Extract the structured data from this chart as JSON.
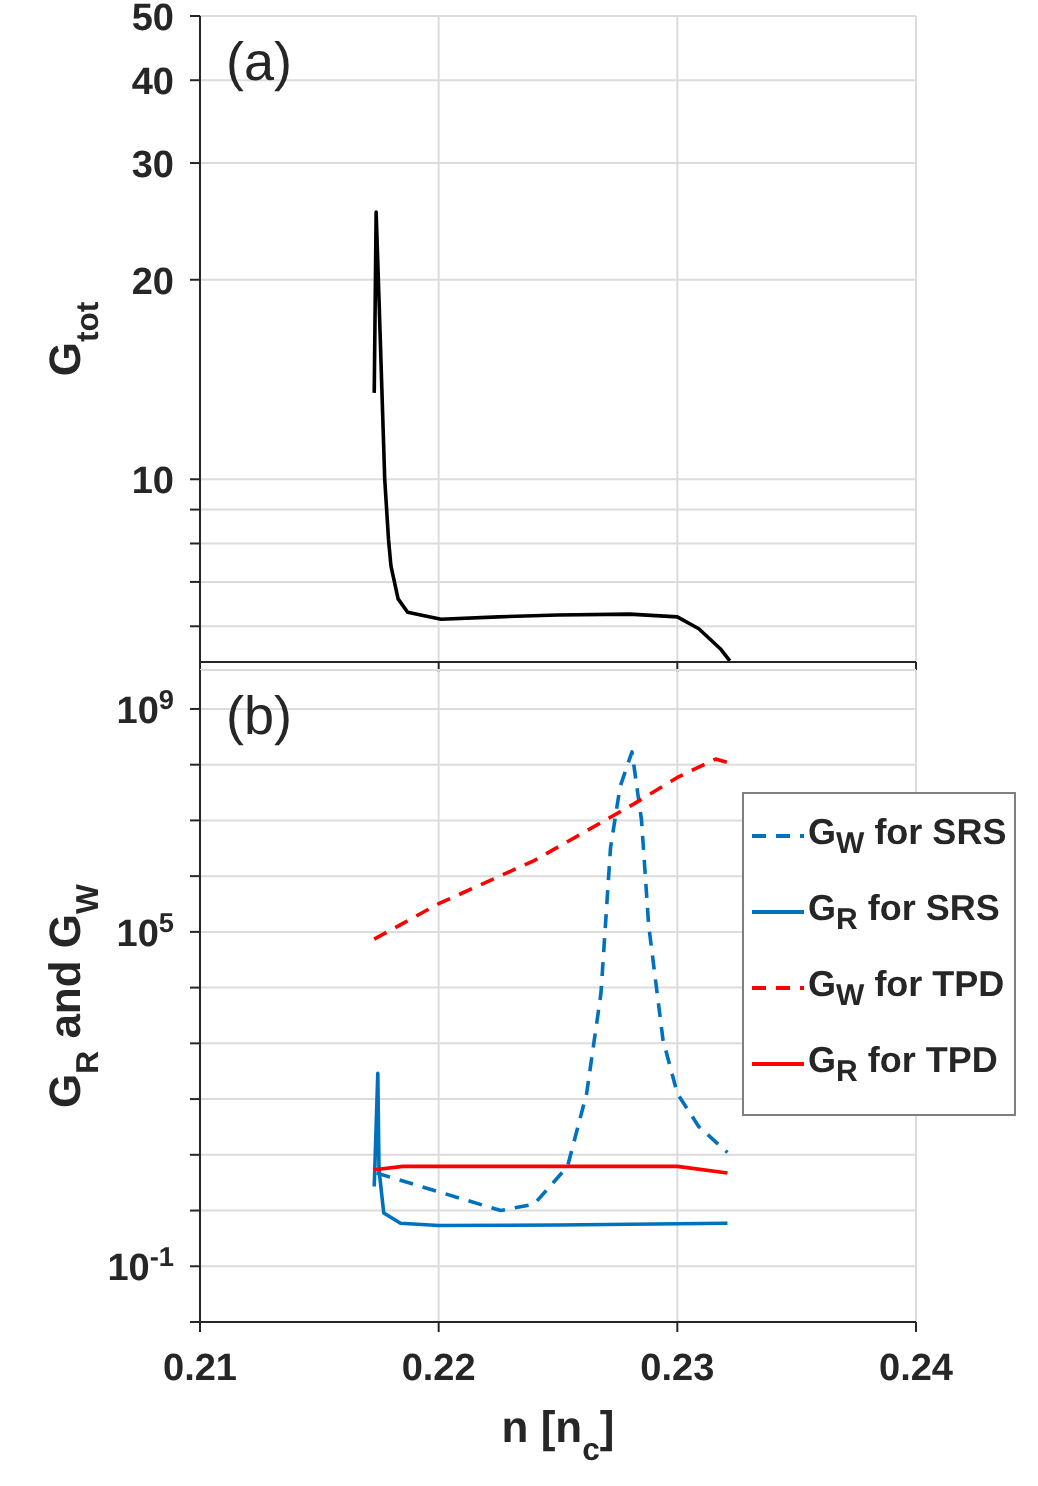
{
  "chart_data": [
    {
      "type": "line",
      "ylabel": "G$_{tot}$",
      "annotations": [
        "(a)"
      ],
      "log": "y",
      "grid": true,
      "tick_labels": "y",
      "xlim": [
        0.21,
        0.24
      ],
      "xticks": [
        {
          "value": 0.21,
          "label": null
        },
        {
          "value": 0.22,
          "label": null
        },
        {
          "value": 0.23,
          "label": null
        },
        {
          "value": 0.24,
          "label": null
        }
      ],
      "ylim": [
        5.3,
        50
      ],
      "yticks": [
        {
          "value": 6,
          "label": null
        },
        {
          "value": 7,
          "label": null
        },
        {
          "value": 8,
          "label": null
        },
        {
          "value": 9,
          "label": null
        },
        10,
        20,
        30,
        40,
        50
      ],
      "series": [
        {
          "color": "#000000",
          "line_style": "solid",
          "x": [
            0.2173,
            0.21738,
            0.2175,
            0.21774,
            0.2179,
            0.218,
            0.2183,
            0.2187,
            0.2201,
            0.2225,
            0.225,
            0.228,
            0.23,
            0.2309,
            0.2318,
            0.2322
          ],
          "values": [
            13.5,
            25.3,
            18.7,
            10,
            8.1,
            7.4,
            6.6,
            6.3,
            6.15,
            6.2,
            6.24,
            6.26,
            6.2,
            5.95,
            5.55,
            5.32
          ]
        }
      ]
    },
    {
      "type": "line",
      "xlabel": "n [n$_{c}$]",
      "ylabel": "G$_{R}$ and G$_{W}$",
      "annotations": [
        "(b)"
      ],
      "log": "y",
      "grid": true,
      "legend": "right",
      "xlim": [
        0.21,
        0.24
      ],
      "xticks": [
        0.21,
        0.22,
        0.23,
        0.24
      ],
      "ylim": [
        0.01,
        5000000000
      ],
      "yticks": [
        {
          "value": 0.01,
          "label": null
        },
        {
          "value": 0.1,
          "label": "10$^{-1}$"
        },
        {
          "value": 1,
          "label": null
        },
        {
          "value": 10,
          "label": null
        },
        {
          "value": 100,
          "label": null
        },
        {
          "value": 1000,
          "label": null
        },
        {
          "value": 10000,
          "label": null
        },
        {
          "value": 100000,
          "label": "10$^{5}$"
        },
        {
          "value": 1000000,
          "label": null
        },
        {
          "value": 10000000,
          "label": null
        },
        {
          "value": 100000000,
          "label": null
        },
        {
          "value": 1000000000,
          "label": "10$^{9}$"
        }
      ],
      "series": [
        {
          "name": "G$_{W}$ for SRS",
          "color": "#0072bd",
          "line_style": "dashed",
          "x": [
            0.2174,
            0.2226,
            0.224,
            0.2254,
            0.2262,
            0.2268,
            0.2272,
            0.2276,
            0.2281,
            0.2285,
            0.2288,
            0.2294,
            0.23,
            0.2309,
            0.2321
          ],
          "values": [
            4.7,
            1.0,
            1.3,
            6.2,
            126,
            7900,
            3200000,
            40000000,
            170000000,
            10000000,
            130000,
            1150,
            126,
            32,
            11
          ]
        },
        {
          "name": "G$_{R}$ for SRS",
          "color": "#0072bd",
          "line_style": "solid",
          "x": [
            0.2173,
            0.21745,
            0.2175,
            0.2177,
            0.2184,
            0.22,
            0.225,
            0.2321
          ],
          "values": [
            2.7,
            290,
            5.4,
            0.9,
            0.59,
            0.54,
            0.55,
            0.59
          ]
        },
        {
          "name": "G$_{W}$ for TPD",
          "color": "#ff0000",
          "line_style": "dashed",
          "x": [
            0.2173,
            0.22,
            0.224,
            0.2282,
            0.23,
            0.2316,
            0.2321
          ],
          "values": [
            74000,
            320000,
            1900000,
            20000000,
            59000000,
            126000000,
            110000000
          ]
        },
        {
          "name": "G$_{R}$ for TPD",
          "color": "#ff0000",
          "line_style": "solid",
          "x": [
            0.2173,
            0.2185,
            0.23,
            0.2321
          ],
          "values": [
            5.4,
            6.2,
            6.2,
            4.7
          ]
        }
      ]
    }
  ]
}
